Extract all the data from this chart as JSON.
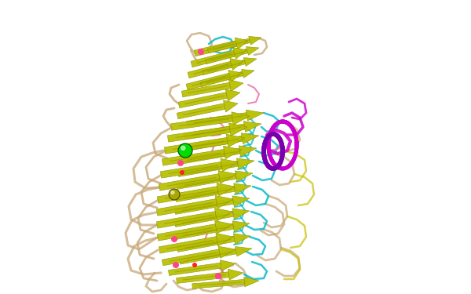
{
  "background_color": "#ffffff",
  "figure_width": 6.0,
  "figure_height": 3.75,
  "dpi": 100,
  "colors": {
    "sheet": "#b8c000",
    "sheet_dark": "#8a9000",
    "sheet_shadow": "#6a7000",
    "loop_tan": "#c8a878",
    "loop_cyan": "#00b8c8",
    "loop_pink": "#e860a0",
    "loop_yellow": "#c8c000",
    "helix_magenta": "#cc00cc",
    "helix_purple": "#7700aa",
    "ball_green": "#00dd00",
    "ball_olive": "#a8a800",
    "dot_pink": "#ff4488",
    "dot_red": "#ff2020"
  }
}
